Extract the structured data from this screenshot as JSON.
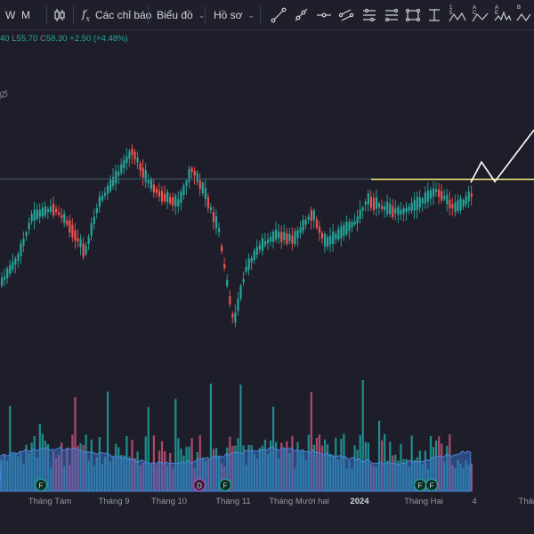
{
  "toolbar": {
    "intervals": [
      "W",
      "M"
    ],
    "indicators_label": "Các chỉ báo",
    "chart_type_label": "Biểu đồ",
    "profile_label": "Hồ sơ",
    "icons": [
      "candlestick-icon",
      "fx-icon",
      "trend-line-icon",
      "ray-icon",
      "horizontal-line-icon",
      "parallel-channel-icon",
      "pitchfork-icon",
      "rectangle-icon",
      "date-range-icon",
      "xabcd-pattern-icon",
      "abcd-pattern-icon",
      "head-shoulders-icon",
      "triangle-pattern-icon"
    ],
    "pattern_labels": [
      "1 5",
      "A C",
      "A E",
      "B"
    ]
  },
  "legend": {
    "open": "40",
    "low_label": "L",
    "low": "55.70",
    "close_label": "C",
    "close": "58.30",
    "change": "+2.50 (+4.48%)"
  },
  "x_axis": [
    {
      "label": "Tháng Tám",
      "x": 56
    },
    {
      "label": "Tháng 9",
      "x": 128
    },
    {
      "label": "Tháng 10",
      "x": 190
    },
    {
      "label": "Tháng 11",
      "x": 262
    },
    {
      "label": "Tháng Mười hai",
      "x": 336
    },
    {
      "label": "2024",
      "x": 404,
      "bold": true
    },
    {
      "label": "Tháng Hai",
      "x": 476
    },
    {
      "label": "4",
      "x": 533
    },
    {
      "label": "Tháng",
      "x": 596
    }
  ],
  "events": [
    {
      "type": "earnings",
      "label": "F",
      "x": 46
    },
    {
      "type": "dividend",
      "label": "D",
      "x": 224
    },
    {
      "type": "earnings",
      "label": "F",
      "x": 253
    },
    {
      "type": "earnings",
      "label": "F",
      "x": 472
    },
    {
      "type": "earnings",
      "label": "F",
      "x": 485
    }
  ],
  "colors": {
    "background": "#1e1e2a",
    "up": "#26a69a",
    "down": "#ef5350",
    "volume_up": "#1e8e8e",
    "volume_down": "#ad4a6a",
    "volume_ma": "#3a6fc4",
    "resistance": "#f0e36a",
    "projection": "#ffffff"
  }
}
